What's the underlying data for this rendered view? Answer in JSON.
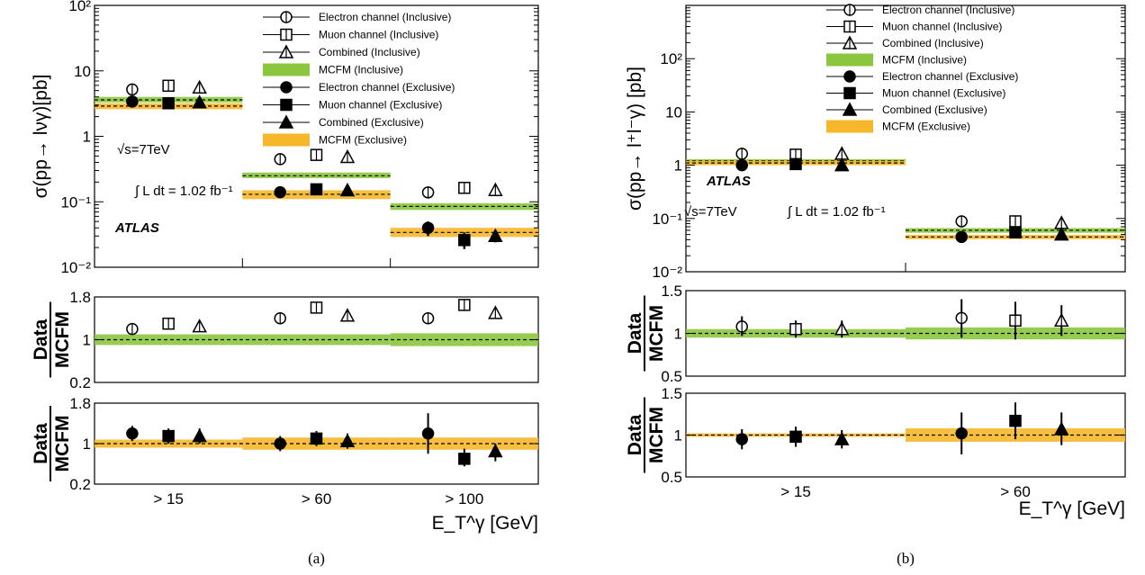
{
  "colors": {
    "inclusive_band": "#8cc63f",
    "exclusive_band": "#f7b72a",
    "mcfm_line": "#000000",
    "axis": "#000000"
  },
  "chart_data": [
    {
      "type": "scatter",
      "caption": "(a)",
      "categories": [
        "> 15",
        "> 60",
        "> 100"
      ],
      "xlabel": "E_T^γ [GeV]",
      "main": {
        "ylabel": "σ(pp→ lνγ)[pb]",
        "yscale": "log",
        "ylim": [
          0.01,
          100
        ],
        "yticks": [
          "10²",
          "10",
          "1",
          "10⁻¹",
          "10⁻²"
        ],
        "series": [
          {
            "name": "Electron channel (Inclusive)",
            "marker": "open-circle",
            "values": [
              4.3,
              0.37,
              0.115
            ]
          },
          {
            "name": "Muon channel (Inclusive)",
            "marker": "open-square",
            "values": [
              4.9,
              0.43,
              0.135
            ]
          },
          {
            "name": "Combined (Inclusive)",
            "marker": "open-triangle",
            "values": [
              4.6,
              0.4,
              0.125
            ]
          },
          {
            "name": "MCFM (Inclusive)",
            "marker": "band",
            "values": [
              3.6,
              0.25,
              0.085
            ],
            "band_lo": [
              3.3,
              0.23,
              0.075
            ],
            "band_hi": [
              4.0,
              0.28,
              0.095
            ]
          },
          {
            "name": "Electron channel (Exclusive)",
            "marker": "filled-circle",
            "values": [
              3.4,
              0.14,
              0.04
            ],
            "err_lo": [
              3.2,
              0.13,
              0.03
            ],
            "err_hi": [
              3.6,
              0.15,
              0.05
            ]
          },
          {
            "name": "Muon channel (Exclusive)",
            "marker": "filled-square",
            "values": [
              3.2,
              0.155,
              0.026
            ],
            "err_lo": [
              3.0,
              0.14,
              0.019
            ],
            "err_hi": [
              3.4,
              0.17,
              0.034
            ]
          },
          {
            "name": "Combined (Exclusive)",
            "marker": "filled-triangle",
            "values": [
              3.3,
              0.15,
              0.03
            ],
            "err_lo": [
              3.1,
              0.14,
              0.024
            ],
            "err_hi": [
              3.5,
              0.16,
              0.037
            ]
          },
          {
            "name": "MCFM (Exclusive)",
            "marker": "band",
            "values": [
              2.9,
              0.13,
              0.034
            ],
            "band_lo": [
              2.6,
              0.11,
              0.029
            ],
            "band_hi": [
              3.2,
              0.15,
              0.04
            ]
          }
        ]
      },
      "ratio_inclusive": {
        "ylabel_num": "Data",
        "ylabel_den": "MCFM",
        "ylim": [
          0.2,
          1.8
        ],
        "yticks": [
          "1.8",
          "1",
          "0.2"
        ],
        "band_halfwidth": [
          0.1,
          0.1,
          0.12
        ],
        "series": [
          {
            "marker": "open-circle",
            "values": [
              1.2,
              1.4,
              1.4
            ],
            "err_lo": [
              1.1,
              1.3,
              1.3
            ],
            "err_hi": [
              1.3,
              1.5,
              1.5
            ]
          },
          {
            "marker": "open-square",
            "values": [
              1.3,
              1.6,
              1.65
            ],
            "err_lo": [
              1.2,
              1.5,
              1.55
            ],
            "err_hi": [
              1.4,
              1.7,
              1.75
            ]
          },
          {
            "marker": "open-triangle",
            "values": [
              1.25,
              1.45,
              1.5
            ],
            "err_lo": [
              1.15,
              1.35,
              1.4
            ],
            "err_hi": [
              1.35,
              1.55,
              1.6
            ]
          }
        ]
      },
      "ratio_exclusive": {
        "ylabel_num": "Data",
        "ylabel_den": "MCFM",
        "ylim": [
          0.2,
          1.8
        ],
        "yticks": [
          "1.8",
          "1",
          "0.2"
        ],
        "band_halfwidth": [
          0.08,
          0.12,
          0.12
        ],
        "series": [
          {
            "marker": "filled-circle",
            "values": [
              1.2,
              1.0,
              1.2
            ],
            "err_lo": [
              1.05,
              0.85,
              0.8
            ],
            "err_hi": [
              1.35,
              1.15,
              1.6
            ]
          },
          {
            "marker": "filled-square",
            "values": [
              1.15,
              1.1,
              0.7
            ],
            "err_lo": [
              1.0,
              0.95,
              0.55
            ],
            "err_hi": [
              1.3,
              1.25,
              0.9
            ]
          },
          {
            "marker": "filled-triangle",
            "values": [
              1.15,
              1.05,
              0.85
            ],
            "err_lo": [
              1.0,
              0.9,
              0.65
            ],
            "err_hi": [
              1.3,
              1.2,
              1.0
            ]
          }
        ]
      },
      "annotations": {
        "energy": "√s=7TeV",
        "lumi": "∫ L dt = 1.02 fb⁻¹",
        "experiment": "ATLAS"
      }
    },
    {
      "type": "scatter",
      "caption": "(b)",
      "categories": [
        "> 15",
        "> 60"
      ],
      "xlabel": "E_T^γ [GeV]",
      "main": {
        "ylabel": "σ(pp→ l⁺l⁻γ) [pb]",
        "yscale": "log",
        "ylim": [
          0.01,
          1000
        ],
        "yticks": [
          "10²",
          "10",
          "1",
          "10⁻¹",
          "10⁻²"
        ],
        "series": [
          {
            "name": "Electron channel (Inclusive)",
            "marker": "open-circle",
            "values": [
              1.3,
              0.07
            ]
          },
          {
            "name": "Muon channel (Inclusive)",
            "marker": "open-square",
            "values": [
              1.25,
              0.07
            ]
          },
          {
            "name": "Combined (Inclusive)",
            "marker": "open-triangle",
            "values": [
              1.3,
              0.065
            ]
          },
          {
            "name": "MCFM (Inclusive)",
            "marker": "band",
            "values": [
              1.2,
              0.06
            ],
            "band_lo": [
              1.1,
              0.054
            ],
            "band_hi": [
              1.3,
              0.066
            ]
          },
          {
            "name": "Electron channel (Exclusive)",
            "marker": "filled-circle",
            "values": [
              1.0,
              0.045
            ]
          },
          {
            "name": "Muon channel (Exclusive)",
            "marker": "filled-square",
            "values": [
              1.05,
              0.055
            ]
          },
          {
            "name": "Combined (Exclusive)",
            "marker": "filled-triangle",
            "values": [
              1.0,
              0.05
            ]
          },
          {
            "name": "MCFM (Exclusive)",
            "marker": "band",
            "values": [
              1.1,
              0.045
            ],
            "band_lo": [
              1.0,
              0.041
            ],
            "band_hi": [
              1.2,
              0.049
            ]
          }
        ]
      },
      "ratio_inclusive": {
        "ylabel_num": "Data",
        "ylabel_den": "MCFM",
        "ylim": [
          0.5,
          1.5
        ],
        "yticks": [
          "1.5",
          "1",
          "0.5"
        ],
        "band_halfwidth": [
          0.05,
          0.07
        ],
        "series": [
          {
            "marker": "open-circle",
            "values": [
              1.08,
              1.18
            ],
            "err_lo": [
              0.97,
              0.95
            ],
            "err_hi": [
              1.2,
              1.4
            ]
          },
          {
            "marker": "open-square",
            "values": [
              1.05,
              1.15
            ],
            "err_lo": [
              0.95,
              0.93
            ],
            "err_hi": [
              1.15,
              1.37
            ]
          },
          {
            "marker": "open-triangle",
            "values": [
              1.05,
              1.15
            ],
            "err_lo": [
              0.95,
              0.97
            ],
            "err_hi": [
              1.15,
              1.33
            ]
          }
        ]
      },
      "ratio_exclusive": {
        "ylabel_num": "Data",
        "ylabel_den": "MCFM",
        "ylim": [
          0.5,
          1.5
        ],
        "yticks": [
          "1.5",
          "1",
          "0.5"
        ],
        "band_halfwidth": [
          0.02,
          0.08
        ],
        "series": [
          {
            "marker": "filled-circle",
            "values": [
              0.95,
              1.02
            ],
            "err_lo": [
              0.83,
              0.77
            ],
            "err_hi": [
              1.07,
              1.27
            ]
          },
          {
            "marker": "filled-square",
            "values": [
              0.98,
              1.17
            ],
            "err_lo": [
              0.86,
              0.95
            ],
            "err_hi": [
              1.1,
              1.39
            ]
          },
          {
            "marker": "filled-triangle",
            "values": [
              0.95,
              1.07
            ],
            "err_lo": [
              0.84,
              0.88
            ],
            "err_hi": [
              1.06,
              1.27
            ]
          }
        ]
      },
      "annotations": {
        "energy": "√s=7TeV",
        "lumi": "∫ L dt = 1.02 fb⁻¹",
        "experiment": "ATLAS"
      }
    }
  ]
}
